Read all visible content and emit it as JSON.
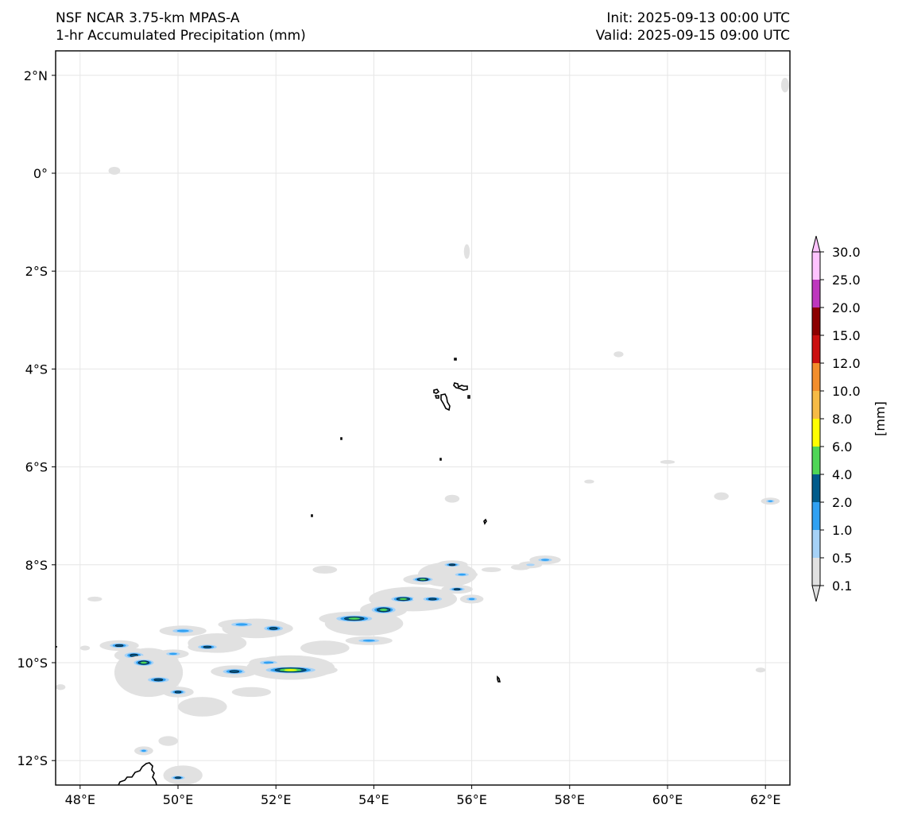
{
  "titles": {
    "left_line1": "NSF NCAR 3.75-km MPAS-A",
    "left_line2": "1-hr Accumulated Precipitation (mm)",
    "right_line1": "Init: 2025-09-13 00:00 UTC",
    "right_line2": "Valid: 2025-09-15 09:00 UTC"
  },
  "map": {
    "lon_range": [
      47.5,
      62.5
    ],
    "lat_range": [
      -12.5,
      2.5
    ],
    "lon_ticks": [
      48,
      50,
      52,
      54,
      56,
      58,
      60,
      62
    ],
    "lat_ticks": [
      2,
      0,
      -2,
      -4,
      -6,
      -8,
      -10,
      -12
    ],
    "lon_tick_labels": [
      "48°E",
      "50°E",
      "52°E",
      "54°E",
      "56°E",
      "58°E",
      "60°E",
      "62°E"
    ],
    "lat_tick_labels": [
      "2°N",
      "0°",
      "2°S",
      "4°S",
      "6°S",
      "8°S",
      "10°S",
      "12°S"
    ],
    "grid": true
  },
  "colorbar": {
    "unit_label": "[mm]",
    "levels": [
      "0.1",
      "0.5",
      "1.0",
      "2.0",
      "4.0",
      "6.0",
      "8.0",
      "10.0",
      "12.0",
      "15.0",
      "20.0",
      "25.0",
      "30.0"
    ],
    "colors": [
      "#e1e1e1",
      "#a6d2f7",
      "#30a1f3",
      "#005b8b",
      "#4fd656",
      "#fefe00",
      "#f6bb46",
      "#f38e2c",
      "#cb1010",
      "#8c0000",
      "#be37be",
      "#fec3fe"
    ],
    "extend": "both"
  },
  "precip_cells": [
    {
      "lon": 48.8,
      "lat": -9.65,
      "rx": 0.25,
      "ry": 0.06,
      "level": 3
    },
    {
      "lon": 49.1,
      "lat": -9.85,
      "rx": 0.25,
      "ry": 0.08,
      "level": 3
    },
    {
      "lon": 49.3,
      "lat": -10.0,
      "rx": 0.25,
      "ry": 0.08,
      "level": 4
    },
    {
      "lon": 49.6,
      "lat": -10.35,
      "rx": 0.28,
      "ry": 0.07,
      "level": 3
    },
    {
      "lon": 50.0,
      "lat": -10.6,
      "rx": 0.2,
      "ry": 0.06,
      "level": 3
    },
    {
      "lon": 50.6,
      "lat": -9.68,
      "rx": 0.25,
      "ry": 0.06,
      "level": 3
    },
    {
      "lon": 49.9,
      "lat": -9.82,
      "rx": 0.2,
      "ry": 0.05,
      "level": 2
    },
    {
      "lon": 50.1,
      "lat": -9.35,
      "rx": 0.3,
      "ry": 0.06,
      "level": 2
    },
    {
      "lon": 51.3,
      "lat": -9.22,
      "rx": 0.3,
      "ry": 0.06,
      "level": 2
    },
    {
      "lon": 51.95,
      "lat": -9.3,
      "rx": 0.25,
      "ry": 0.07,
      "level": 3
    },
    {
      "lon": 51.15,
      "lat": -10.18,
      "rx": 0.3,
      "ry": 0.07,
      "level": 3
    },
    {
      "lon": 51.85,
      "lat": -10.0,
      "rx": 0.25,
      "ry": 0.06,
      "level": 2
    },
    {
      "lon": 52.3,
      "lat": -10.15,
      "rx": 0.6,
      "ry": 0.08,
      "level": 5
    },
    {
      "lon": 53.6,
      "lat": -9.1,
      "rx": 0.45,
      "ry": 0.08,
      "level": 4
    },
    {
      "lon": 54.2,
      "lat": -8.92,
      "rx": 0.3,
      "ry": 0.09,
      "level": 4
    },
    {
      "lon": 53.9,
      "lat": -9.55,
      "rx": 0.3,
      "ry": 0.05,
      "level": 2
    },
    {
      "lon": 54.6,
      "lat": -8.7,
      "rx": 0.3,
      "ry": 0.07,
      "level": 4
    },
    {
      "lon": 55.0,
      "lat": -8.3,
      "rx": 0.25,
      "ry": 0.06,
      "level": 4
    },
    {
      "lon": 55.2,
      "lat": -8.7,
      "rx": 0.25,
      "ry": 0.06,
      "level": 3
    },
    {
      "lon": 55.6,
      "lat": -8.0,
      "rx": 0.2,
      "ry": 0.05,
      "level": 3
    },
    {
      "lon": 55.7,
      "lat": -8.5,
      "rx": 0.2,
      "ry": 0.05,
      "level": 3
    },
    {
      "lon": 55.8,
      "lat": -8.2,
      "rx": 0.2,
      "ry": 0.05,
      "level": 2
    },
    {
      "lon": 56.0,
      "lat": -8.7,
      "rx": 0.15,
      "ry": 0.05,
      "level": 2
    },
    {
      "lon": 57.5,
      "lat": -7.9,
      "rx": 0.2,
      "ry": 0.05,
      "level": 2
    },
    {
      "lon": 57.2,
      "lat": -8.0,
      "rx": 0.15,
      "ry": 0.04,
      "level": 1
    },
    {
      "lon": 49.3,
      "lat": -11.8,
      "rx": 0.12,
      "ry": 0.05,
      "level": 2
    },
    {
      "lon": 50.0,
      "lat": -12.35,
      "rx": 0.18,
      "ry": 0.05,
      "level": 3
    },
    {
      "lon": 62.1,
      "lat": -6.7,
      "rx": 0.12,
      "ry": 0.04,
      "level": 2
    }
  ],
  "light_patches": [
    {
      "lon": 52.3,
      "lat": -10.1,
      "rx": 0.9,
      "ry": 0.25
    },
    {
      "lon": 49.4,
      "lat": -10.2,
      "rx": 0.7,
      "ry": 0.5
    },
    {
      "lon": 50.8,
      "lat": -9.6,
      "rx": 0.6,
      "ry": 0.2
    },
    {
      "lon": 51.6,
      "lat": -9.3,
      "rx": 0.7,
      "ry": 0.2
    },
    {
      "lon": 53.8,
      "lat": -9.2,
      "rx": 0.8,
      "ry": 0.25
    },
    {
      "lon": 54.8,
      "lat": -8.7,
      "rx": 0.9,
      "ry": 0.25
    },
    {
      "lon": 55.5,
      "lat": -8.2,
      "rx": 0.6,
      "ry": 0.25
    },
    {
      "lon": 53.0,
      "lat": -9.7,
      "rx": 0.5,
      "ry": 0.15
    },
    {
      "lon": 50.5,
      "lat": -10.9,
      "rx": 0.5,
      "ry": 0.2
    },
    {
      "lon": 50.1,
      "lat": -12.3,
      "rx": 0.4,
      "ry": 0.2
    },
    {
      "lon": 49.8,
      "lat": -11.6,
      "rx": 0.2,
      "ry": 0.1
    },
    {
      "lon": 53.0,
      "lat": -8.1,
      "rx": 0.25,
      "ry": 0.08
    },
    {
      "lon": 56.4,
      "lat": -8.1,
      "rx": 0.2,
      "ry": 0.05
    },
    {
      "lon": 57.0,
      "lat": -8.05,
      "rx": 0.2,
      "ry": 0.06
    },
    {
      "lon": 55.6,
      "lat": -6.65,
      "rx": 0.15,
      "ry": 0.08
    },
    {
      "lon": 58.4,
      "lat": -6.3,
      "rx": 0.1,
      "ry": 0.04
    },
    {
      "lon": 60.0,
      "lat": -5.9,
      "rx": 0.15,
      "ry": 0.04
    },
    {
      "lon": 61.1,
      "lat": -6.6,
      "rx": 0.15,
      "ry": 0.08
    },
    {
      "lon": 59.0,
      "lat": -3.7,
      "rx": 0.1,
      "ry": 0.06
    },
    {
      "lon": 55.9,
      "lat": -1.6,
      "rx": 0.06,
      "ry": 0.15
    },
    {
      "lon": 48.3,
      "lat": -8.7,
      "rx": 0.15,
      "ry": 0.05
    },
    {
      "lon": 47.6,
      "lat": -10.5,
      "rx": 0.1,
      "ry": 0.06
    },
    {
      "lon": 49.8,
      "lat": -9.95,
      "rx": 0.2,
      "ry": 0.1
    },
    {
      "lon": 51.5,
      "lat": -10.6,
      "rx": 0.4,
      "ry": 0.1
    },
    {
      "lon": 48.1,
      "lat": -9.7,
      "rx": 0.1,
      "ry": 0.05
    },
    {
      "lon": 61.9,
      "lat": -10.15,
      "rx": 0.1,
      "ry": 0.05
    },
    {
      "lon": 48.7,
      "lat": 0.05,
      "rx": 0.12,
      "ry": 0.08
    },
    {
      "lon": 62.4,
      "lat": 1.8,
      "rx": 0.08,
      "ry": 0.15
    }
  ]
}
